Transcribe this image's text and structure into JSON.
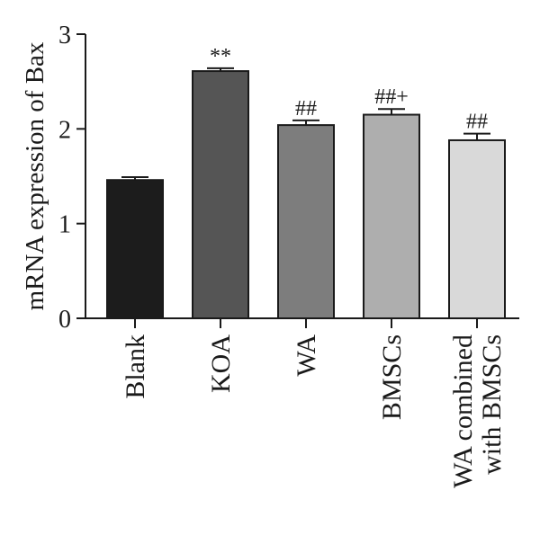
{
  "chart_data": {
    "type": "bar",
    "title": "",
    "xlabel": "",
    "ylabel": "mRNA expression of Bax",
    "ylim": [
      0,
      3
    ],
    "yticks": [
      0,
      1,
      2,
      3
    ],
    "grid": false,
    "categories": [
      {
        "lines": [
          "Blank"
        ]
      },
      {
        "lines": [
          "KOA"
        ]
      },
      {
        "lines": [
          "WA"
        ]
      },
      {
        "lines": [
          "BMSCs"
        ]
      },
      {
        "lines": [
          "WA combined",
          "with BMSCs"
        ]
      }
    ],
    "values": [
      1.46,
      2.61,
      2.04,
      2.15,
      1.88
    ],
    "errors": [
      0.03,
      0.03,
      0.05,
      0.06,
      0.07
    ],
    "annotations": [
      "",
      "**",
      "##",
      "##+",
      "##"
    ],
    "colors": [
      "#1c1c1c",
      "#555555",
      "#7d7d7d",
      "#aeaeae",
      "#d9d9d9"
    ],
    "edge_color": "#1a1a1a"
  }
}
